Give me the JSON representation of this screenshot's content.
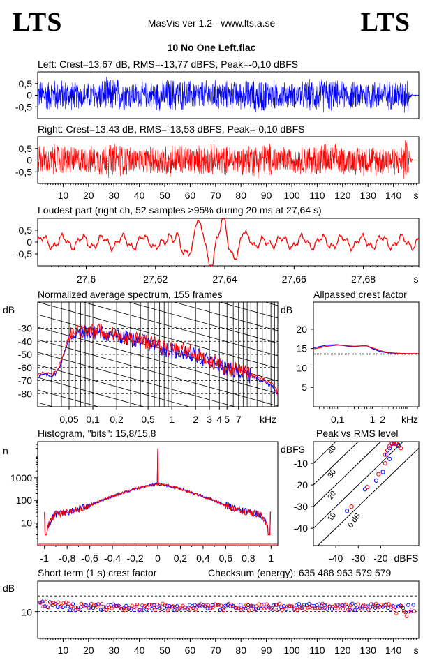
{
  "header": {
    "logo_left": "LTS",
    "logo_right": "LTS",
    "app_title": "MasVis ver 1.2 - www.lts.a.se",
    "file_title": "10 No One Left.flac"
  },
  "colors": {
    "left": "#0000ff",
    "right": "#ff0000"
  },
  "chart_data": [
    {
      "id": "left-waveform",
      "type": "line",
      "title": "Left: Crest=13,67 dB, RMS=-13,77 dBFS, Peak=-0,10 dBFS",
      "series_color": "blue",
      "ylim": [
        -1,
        1
      ],
      "yticks": [
        "0,5",
        "0",
        "-0,5"
      ],
      "ytick_values": [
        0.5,
        0,
        -0.5
      ]
    },
    {
      "id": "right-waveform",
      "type": "line",
      "title": "Right: Crest=13,43 dB, RMS=-13,53 dBFS, Peak=-0,10 dBFS",
      "series_color": "red",
      "ylim": [
        -1,
        1
      ],
      "yticks": [
        "0,5",
        "0",
        "-0,5"
      ],
      "ytick_values": [
        0.5,
        0,
        -0.5
      ],
      "xlim": [
        0,
        150
      ],
      "xticks": [
        "10",
        "20",
        "30",
        "40",
        "50",
        "60",
        "70",
        "80",
        "90",
        "100",
        "110",
        "120",
        "130",
        "140"
      ],
      "xtick_values": [
        10,
        20,
        30,
        40,
        50,
        60,
        70,
        80,
        90,
        100,
        110,
        120,
        130,
        140
      ],
      "xunit": "s",
      "marker_x": 27.64
    },
    {
      "id": "loudest-part",
      "type": "line",
      "title": "Loudest part (right ch, 52 samples >95% during 20 ms at 27,64 s)",
      "xlim": [
        27.586,
        27.696
      ],
      "xticks": [
        "27,6",
        "27,62",
        "27,64",
        "27,66",
        "27,68"
      ],
      "xtick_values": [
        27.6,
        27.62,
        27.64,
        27.66,
        27.68
      ],
      "xunit": "s",
      "ylim": [
        -1,
        1
      ],
      "yticks": [
        "0,5",
        "0",
        "-0,5"
      ],
      "ytick_values": [
        0.5,
        0,
        -0.5
      ]
    },
    {
      "id": "spectrum",
      "type": "line",
      "title": "Normalized average spectrum, 155 frames",
      "ylabel": "dB",
      "yticks": [
        "-30",
        "-40",
        "-50",
        "-60",
        "-70",
        "-80"
      ],
      "ytick_values": [
        -30,
        -40,
        -50,
        -60,
        -70,
        -80
      ],
      "ylim": [
        -90,
        -10
      ],
      "xscale": "log",
      "xlim": [
        0.02,
        22
      ],
      "xticks": [
        "0,05",
        "0,1",
        "0,2",
        "0,5",
        "1",
        "2",
        "3",
        "4",
        "5",
        "7"
      ],
      "xtick_values": [
        0.05,
        0.1,
        0.2,
        0.5,
        1,
        2,
        3,
        4,
        5,
        7
      ],
      "xunit": "kHz",
      "x": [
        0.02,
        0.025,
        0.03,
        0.035,
        0.04,
        0.045,
        0.05,
        0.06,
        0.07,
        0.08,
        0.1,
        0.12,
        0.15,
        0.2,
        0.3,
        0.5,
        0.7,
        1,
        1.5,
        2,
        3,
        4,
        5,
        7,
        10,
        15,
        20,
        22
      ],
      "values": [
        -66,
        -65,
        -66,
        -63,
        -55,
        -45,
        -37,
        -33,
        -34,
        -32,
        -33,
        -32,
        -34,
        -35,
        -38,
        -41,
        -44,
        -47,
        -48,
        -50,
        -55,
        -58,
        -61,
        -63,
        -66,
        -70,
        -75,
        -80
      ]
    },
    {
      "id": "allpassed-crest",
      "type": "line",
      "title": "Allpassed crest factor",
      "ylabel": "dB",
      "yticks": [
        "20",
        "15",
        "10",
        "5"
      ],
      "ytick_values": [
        20,
        15,
        10,
        5
      ],
      "ylim": [
        0,
        27
      ],
      "xscale": "log",
      "xlim": [
        0.02,
        22
      ],
      "xticks": [
        "0,1",
        "1",
        "2"
      ],
      "xtick_values": [
        0.1,
        1,
        2
      ],
      "xunit": "kHz",
      "reference": 13.6,
      "x": [
        0.02,
        0.05,
        0.1,
        0.2,
        0.3,
        0.5,
        0.7,
        1,
        1.5,
        2,
        3,
        5,
        10,
        22
      ],
      "series": [
        {
          "color": "blue",
          "values": [
            15.2,
            15.9,
            16.0,
            15.6,
            15.5,
            15.7,
            15.7,
            15.0,
            14.4,
            14.1,
            13.9,
            13.8,
            13.7,
            13.7
          ]
        },
        {
          "color": "red",
          "values": [
            14.9,
            15.6,
            15.9,
            15.7,
            15.6,
            15.7,
            15.7,
            15.2,
            14.7,
            14.3,
            14.0,
            13.8,
            13.7,
            13.7
          ]
        }
      ]
    },
    {
      "id": "histogram",
      "type": "line",
      "title": "Histogram, \"bits\": 15,8/15,8",
      "ylabel": "n",
      "yscale": "log",
      "yticks": [
        "1000",
        "100",
        "10"
      ],
      "ytick_values": [
        1000,
        100,
        10
      ],
      "ylim": [
        1,
        40000
      ],
      "xlim": [
        -1.06,
        1.06
      ],
      "xticks": [
        "-1",
        "-0,8",
        "-0,6",
        "-0,4",
        "-0,2",
        "0",
        "0,2",
        "0,4",
        "0,6",
        "0,8",
        "1"
      ],
      "xtick_values": [
        -1,
        -0.8,
        -0.6,
        -0.4,
        -0.2,
        0,
        0.2,
        0.4,
        0.6,
        0.8,
        1
      ],
      "x": [
        -1,
        -0.98,
        -0.9,
        -0.8,
        -0.7,
        -0.6,
        -0.5,
        -0.4,
        -0.3,
        -0.2,
        -0.1,
        -0.02,
        0,
        0.02,
        0.1,
        0.2,
        0.3,
        0.4,
        0.5,
        0.6,
        0.7,
        0.8,
        0.9,
        0.98,
        1
      ],
      "values": [
        30,
        3,
        25,
        30,
        40,
        60,
        95,
        150,
        220,
        320,
        430,
        520,
        20000,
        520,
        430,
        320,
        220,
        150,
        95,
        60,
        40,
        30,
        25,
        3,
        30
      ]
    },
    {
      "id": "peak-vs-rms",
      "type": "scatter",
      "title": "Peak vs RMS level",
      "ylabel": "dBFS",
      "xlabel": "dBFS",
      "yticks": [
        "-10",
        "-20",
        "-30",
        "-40"
      ],
      "ytick_values": [
        -10,
        -20,
        -30,
        -40
      ],
      "ylim": [
        -48,
        0
      ],
      "xticks": [
        "-40",
        "-30",
        "-20"
      ],
      "xtick_values": [
        -40,
        -30,
        -20
      ],
      "xlim": [
        -50,
        -3
      ],
      "crest_labels": [
        "40",
        "30",
        "20",
        "10",
        "0 dB"
      ],
      "crest_values": [
        40,
        30,
        20,
        10,
        0
      ],
      "series": [
        {
          "color": "blue",
          "points": [
            [
              -35,
              -32
            ],
            [
              -27,
              -22
            ],
            [
              -22,
              -18
            ],
            [
              -19,
              -14
            ],
            [
              -17,
              -6
            ],
            [
              -16,
              -3
            ],
            [
              -15,
              -1
            ],
            [
              -14,
              -0.5
            ],
            [
              -13,
              -1
            ],
            [
              -12,
              -2
            ],
            [
              -16,
              -8
            ]
          ]
        },
        {
          "color": "red",
          "points": [
            [
              -33,
              -30
            ],
            [
              -26,
              -21
            ],
            [
              -21,
              -15
            ],
            [
              -18,
              -10
            ],
            [
              -17,
              -4
            ],
            [
              -16,
              -2
            ],
            [
              -15,
              -0.5
            ],
            [
              -14,
              -1
            ],
            [
              -13,
              -0.3
            ],
            [
              -12,
              -1.5
            ],
            [
              -11,
              -3
            ],
            [
              -18,
              -6
            ]
          ]
        }
      ]
    },
    {
      "id": "short-term-crest",
      "type": "scatter",
      "title": "Short term (1 s) crest factor",
      "annotation": "Checksum (energy):   635 488 963 579 579",
      "ylabel": "dB",
      "yscale": "log",
      "yticks": [
        "10"
      ],
      "ytick_values": [
        10
      ],
      "ylim": [
        5,
        22
      ],
      "reference_lines": [
        10,
        15
      ],
      "xlim": [
        0,
        150
      ],
      "xticks": [
        "10",
        "20",
        "30",
        "40",
        "50",
        "60",
        "70",
        "80",
        "90",
        "100",
        "110",
        "120",
        "130",
        "140"
      ],
      "xtick_values": [
        10,
        20,
        30,
        40,
        50,
        60,
        70,
        80,
        90,
        100,
        110,
        120,
        130,
        140
      ],
      "xunit": "s"
    }
  ]
}
